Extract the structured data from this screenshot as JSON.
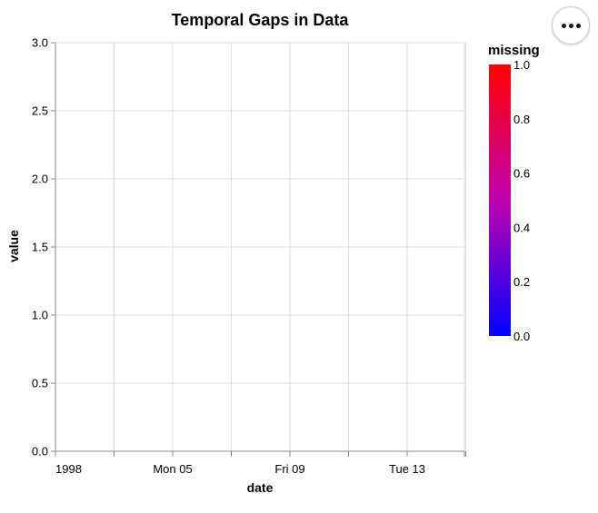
{
  "chart_data": {
    "type": "line",
    "title": "Temporal Gaps in Data",
    "xlabel": "date",
    "ylabel": "value",
    "ylim": [
      0,
      3
    ],
    "yticks": [
      "0.0",
      "0.5",
      "1.0",
      "1.5",
      "2.0",
      "2.5",
      "3.0"
    ],
    "xticks": [
      "1998",
      "Mon 05",
      "Fri 09",
      "Tue 13"
    ],
    "grid": true,
    "series": [],
    "legend": {
      "title": "missing",
      "type": "gradient",
      "placement": "right",
      "domain": [
        0,
        1
      ],
      "ticks": [
        "0.0",
        "0.2",
        "0.4",
        "0.6",
        "0.8",
        "1.0"
      ],
      "color_low": "#0000ff",
      "color_high": "#ff0000"
    }
  },
  "menu": {
    "icon": "more-horizontal-icon"
  }
}
